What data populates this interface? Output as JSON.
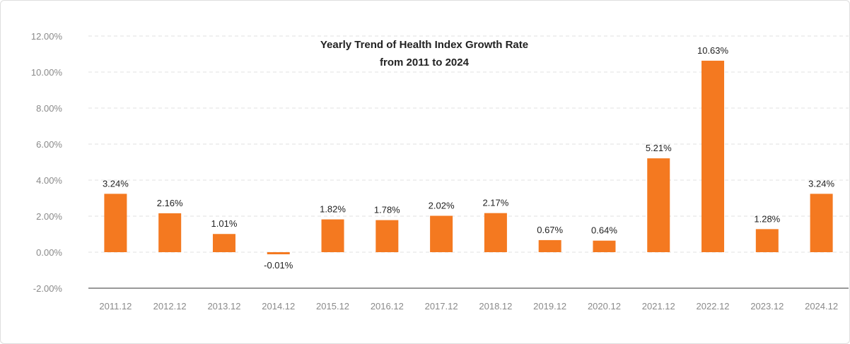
{
  "colors": {
    "bar": "#f47920",
    "grid": "#e2e2e2",
    "axis": "#333333"
  },
  "chart_data": {
    "type": "bar",
    "title_lines": [
      "Yearly Trend of Health Index Growth Rate",
      "from 2011 to 2024"
    ],
    "categories": [
      "2011.12",
      "2012.12",
      "2013.12",
      "2014.12",
      "2015.12",
      "2016.12",
      "2017.12",
      "2018.12",
      "2019.12",
      "2020.12",
      "2021.12",
      "2022.12",
      "2023.12",
      "2024.12"
    ],
    "series": [
      {
        "values": [
          3.24,
          2.16,
          1.01,
          -0.01,
          1.82,
          1.78,
          2.02,
          2.17,
          0.67,
          0.64,
          5.21,
          10.63,
          1.28,
          3.24
        ],
        "labels": [
          "3.24%",
          "2.16%",
          "1.01%",
          "-0.01%",
          "1.82%",
          "1.78%",
          "2.02%",
          "2.17%",
          "0.67%",
          "0.64%",
          "5.21%",
          "10.63%",
          "1.28%",
          "3.24%"
        ]
      }
    ],
    "yticks": [
      12,
      10,
      8,
      6,
      4,
      2,
      0,
      -2
    ],
    "ytick_labels": [
      "12.00%",
      "10.00%",
      "8.00%",
      "6.00%",
      "4.00%",
      "2.00%",
      "0.00%",
      "-2.00%"
    ],
    "ylim": [
      -2,
      12
    ],
    "grid": true,
    "legend": "none"
  }
}
